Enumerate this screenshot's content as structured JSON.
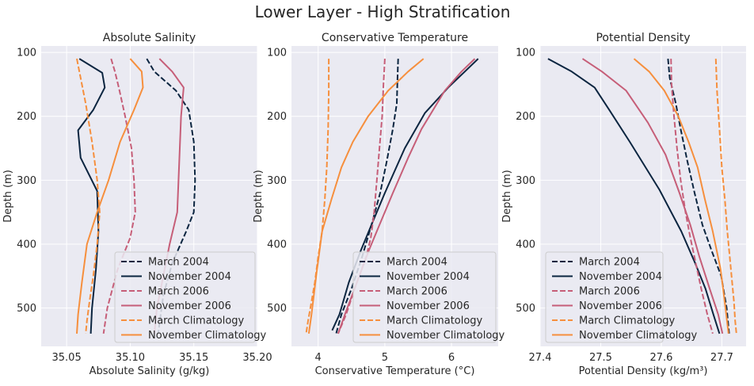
{
  "figure": {
    "title": "Lower Layer - High Stratification"
  },
  "styles": {
    "colors": {
      "March 2004": "#0b2540",
      "November 2004": "#0b2540",
      "March 2006": "#c65e78",
      "November 2006": "#c65e78",
      "March Climatology": "#f68f3d",
      "November Climatology": "#f68f3d"
    },
    "dashed": [
      "March 2004",
      "March 2006",
      "March Climatology"
    ]
  },
  "chart_data": [
    {
      "type": "line",
      "title": "Absolute Salinity",
      "xlabel": "Absolute Salinity (g/kg)",
      "ylabel": "Depth (m)",
      "xlim": [
        35.03,
        35.2
      ],
      "ylim": [
        560,
        90
      ],
      "xticks": [
        "35.05",
        "35.10",
        "35.15",
        "35.20"
      ],
      "yticks": [
        "100",
        "200",
        "300",
        "400",
        "500"
      ],
      "grid": true,
      "legend": "lower-right",
      "series": [
        {
          "name": "March 2004",
          "x": [
            35.113,
            35.119,
            35.136,
            35.146,
            35.15,
            35.151,
            35.15,
            35.144,
            35.133,
            35.126,
            35.122
          ],
          "y": [
            110,
            130,
            160,
            190,
            240,
            300,
            350,
            380,
            430,
            480,
            540
          ]
        },
        {
          "name": "November 2004",
          "x": [
            35.06,
            35.078,
            35.08,
            35.071,
            35.059,
            35.061,
            35.074,
            35.075,
            35.073,
            35.07,
            35.069
          ],
          "y": [
            110,
            132,
            155,
            190,
            222,
            265,
            317,
            380,
            440,
            500,
            540
          ]
        },
        {
          "name": "March 2006",
          "x": [
            35.085,
            35.088,
            35.091,
            35.096,
            35.101,
            35.103,
            35.104,
            35.1,
            35.09,
            35.082,
            35.079
          ],
          "y": [
            110,
            130,
            155,
            200,
            250,
            300,
            350,
            390,
            440,
            500,
            540
          ]
        },
        {
          "name": "November 2006",
          "x": [
            35.123,
            35.133,
            35.142,
            35.14,
            35.139,
            35.138,
            35.137,
            35.131,
            35.126,
            35.121,
            35.119
          ],
          "y": [
            110,
            130,
            155,
            200,
            250,
            300,
            350,
            400,
            450,
            500,
            540
          ]
        },
        {
          "name": "March Climatology",
          "x": [
            35.058,
            35.061,
            35.065,
            35.07,
            35.074,
            35.076,
            35.074,
            35.071,
            35.068,
            35.066,
            35.065
          ],
          "y": [
            110,
            140,
            180,
            240,
            300,
            350,
            400,
            450,
            490,
            520,
            540
          ]
        },
        {
          "name": "November Climatology",
          "x": [
            35.1,
            35.109,
            35.11,
            35.103,
            35.092,
            35.083,
            35.074,
            35.066,
            35.062,
            35.059,
            35.058
          ],
          "y": [
            110,
            130,
            155,
            190,
            240,
            300,
            350,
            400,
            460,
            510,
            540
          ]
        }
      ]
    },
    {
      "type": "line",
      "title": "Conservative Temperature",
      "xlabel": "Conservative Temperature (°C)",
      "ylabel": "Depth (m)",
      "xlim": [
        3.6,
        6.7
      ],
      "ylim": [
        560,
        90
      ],
      "xticks": [
        "4",
        "5",
        "6"
      ],
      "yticks": [
        "100",
        "200",
        "300",
        "400",
        "500"
      ],
      "grid": true,
      "legend": "lower-right",
      "series": [
        {
          "name": "March 2004",
          "x": [
            5.2,
            5.19,
            5.18,
            5.12,
            5.03,
            4.93,
            4.8,
            4.66,
            4.5,
            4.35,
            4.27
          ],
          "y": [
            110,
            140,
            180,
            220,
            270,
            320,
            370,
            420,
            470,
            510,
            540
          ]
        },
        {
          "name": "November 2004",
          "x": [
            6.4,
            6.2,
            5.95,
            5.6,
            5.3,
            5.0,
            4.8,
            4.64,
            4.46,
            4.32,
            4.21
          ],
          "y": [
            110,
            130,
            155,
            195,
            250,
            320,
            370,
            410,
            460,
            510,
            535
          ]
        },
        {
          "name": "March 2006",
          "x": [
            5.0,
            4.98,
            4.96,
            4.92,
            4.88,
            4.84,
            4.79,
            4.72,
            4.58,
            4.42,
            4.3
          ],
          "y": [
            110,
            150,
            200,
            250,
            300,
            350,
            390,
            420,
            460,
            510,
            540
          ]
        },
        {
          "name": "November 2006",
          "x": [
            6.35,
            6.15,
            5.9,
            5.55,
            5.35,
            5.12,
            4.92,
            4.76,
            4.6,
            4.42,
            4.3
          ],
          "y": [
            110,
            130,
            160,
            220,
            265,
            320,
            370,
            410,
            455,
            505,
            540
          ]
        },
        {
          "name": "March Climatology",
          "x": [
            4.16,
            4.16,
            4.15,
            4.13,
            4.1,
            4.06,
            4.0,
            3.95,
            3.9,
            3.85,
            3.82
          ],
          "y": [
            110,
            160,
            220,
            280,
            330,
            380,
            420,
            460,
            490,
            520,
            540
          ]
        },
        {
          "name": "November Climatology",
          "x": [
            5.58,
            5.35,
            5.05,
            4.75,
            4.52,
            4.35,
            4.2,
            4.06,
            3.97,
            3.9,
            3.86
          ],
          "y": [
            110,
            130,
            160,
            200,
            240,
            280,
            330,
            380,
            450,
            510,
            540
          ]
        }
      ]
    },
    {
      "type": "line",
      "title": "Potential Density",
      "xlabel": "Potential Density (kg/m³)",
      "ylabel": "Depth (m)",
      "xlim": [
        27.4,
        27.74
      ],
      "ylim": [
        560,
        90
      ],
      "xticks": [
        "27.4",
        "27.5",
        "27.6",
        "27.7"
      ],
      "yticks": [
        "100",
        "200",
        "300",
        "400",
        "500"
      ],
      "grid": true,
      "legend": "lower-left",
      "series": [
        {
          "name": "March 2004",
          "x": [
            27.611,
            27.614,
            27.624,
            27.632,
            27.643,
            27.655,
            27.668,
            27.683,
            27.699,
            27.708,
            27.712
          ],
          "y": [
            110,
            140,
            180,
            220,
            270,
            320,
            370,
            410,
            450,
            500,
            540
          ]
        },
        {
          "name": "November 2004",
          "x": [
            27.413,
            27.452,
            27.49,
            27.514,
            27.548,
            27.597,
            27.633,
            27.656,
            27.673,
            27.686,
            27.696
          ],
          "y": [
            110,
            130,
            155,
            190,
            240,
            315,
            380,
            430,
            470,
            510,
            540
          ]
        },
        {
          "name": "March 2006",
          "x": [
            27.616,
            27.617,
            27.621,
            27.626,
            27.632,
            27.64,
            27.648,
            27.657,
            27.666,
            27.676,
            27.685
          ],
          "y": [
            110,
            150,
            200,
            250,
            300,
            350,
            390,
            430,
            470,
            510,
            540
          ]
        },
        {
          "name": "November 2006",
          "x": [
            27.47,
            27.502,
            27.542,
            27.578,
            27.607,
            27.63,
            27.648,
            27.663,
            27.68,
            27.694,
            27.701
          ],
          "y": [
            110,
            130,
            160,
            210,
            260,
            320,
            370,
            420,
            470,
            510,
            540
          ]
        },
        {
          "name": "March Climatology",
          "x": [
            27.69,
            27.692,
            27.696,
            27.7,
            27.705,
            27.709,
            27.713,
            27.717,
            27.72,
            27.722,
            27.724
          ],
          "y": [
            110,
            160,
            220,
            280,
            330,
            380,
            420,
            460,
            490,
            520,
            540
          ]
        },
        {
          "name": "November Climatology",
          "x": [
            27.555,
            27.58,
            27.605,
            27.628,
            27.645,
            27.66,
            27.672,
            27.685,
            27.698,
            27.706,
            27.711
          ],
          "y": [
            110,
            130,
            160,
            200,
            240,
            280,
            330,
            380,
            440,
            500,
            540
          ]
        }
      ]
    }
  ]
}
